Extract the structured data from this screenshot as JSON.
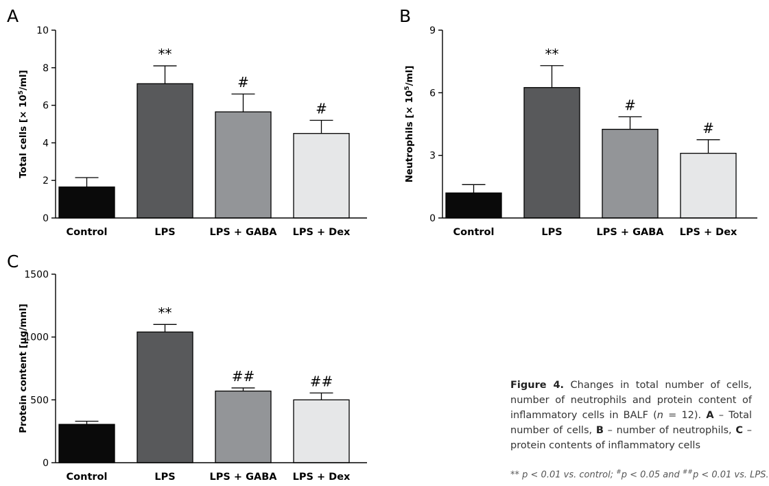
{
  "chart_data": [
    {
      "type": "bar",
      "panel_label": "A",
      "ylabel_main": "Total cells [× 10",
      "ylabel_sup": "5",
      "ylabel_end": "/ml]",
      "categories": [
        "Control",
        "LPS",
        "LPS + GABA",
        "LPS + Dex"
      ],
      "values": [
        1.65,
        7.15,
        5.65,
        4.5
      ],
      "errors": [
        0.5,
        0.95,
        0.95,
        0.7
      ],
      "annotations": [
        "",
        "**",
        "#",
        "#"
      ],
      "bar_colors": [
        "#0a0a0a",
        "#58595b",
        "#939598",
        "#e6e7e8"
      ],
      "ylim": [
        0,
        10
      ],
      "yticks": [
        0,
        2,
        4,
        6,
        8,
        10
      ]
    },
    {
      "type": "bar",
      "panel_label": "B",
      "ylabel_main": "Neutrophils [× 10",
      "ylabel_sup": "5",
      "ylabel_end": "/ml]",
      "categories": [
        "Control",
        "LPS",
        "LPS + GABA",
        "LPS + Dex"
      ],
      "values": [
        1.2,
        6.25,
        4.25,
        3.1
      ],
      "errors": [
        0.4,
        1.05,
        0.6,
        0.65
      ],
      "annotations": [
        "",
        "**",
        "#",
        "#"
      ],
      "bar_colors": [
        "#0a0a0a",
        "#58595b",
        "#939598",
        "#e6e7e8"
      ],
      "ylim": [
        0,
        9
      ],
      "yticks": [
        0,
        3,
        6,
        9
      ]
    },
    {
      "type": "bar",
      "panel_label": "C",
      "ylabel_main": "Protein content [µg/mnl]",
      "ylabel_sup": "",
      "ylabel_end": "",
      "categories": [
        "Control",
        "LPS",
        "LPS + GABA",
        "LPS + Dex"
      ],
      "values": [
        305,
        1040,
        570,
        500
      ],
      "errors": [
        25,
        60,
        25,
        55
      ],
      "annotations": [
        "",
        "**",
        "##",
        "##"
      ],
      "bar_colors": [
        "#0a0a0a",
        "#58595b",
        "#939598",
        "#e6e7e8"
      ],
      "ylim": [
        0,
        1500
      ],
      "yticks": [
        0,
        500,
        1000,
        1500
      ]
    }
  ],
  "caption": {
    "figure_label": "Figure 4.",
    "text_1": " Changes in total number of cells, number of neutrophils and protein content of inflammatory cells in BALF (",
    "n_symbol": "n",
    "text_2": " = 12). ",
    "label_a": "A",
    "text_a": " – Total number of cells, ",
    "label_b": "B",
    "text_b": " – number of neutrophils, ",
    "label_c": "C",
    "text_c": " – protein contents of inflammatory cells"
  },
  "footnote": {
    "part_1": "** p < 0.01 vs. control; ",
    "sup_1": "#",
    "part_2": "p < 0.05 and ",
    "sup_2": "##",
    "part_3": "p < 0.01 vs. LPS."
  }
}
